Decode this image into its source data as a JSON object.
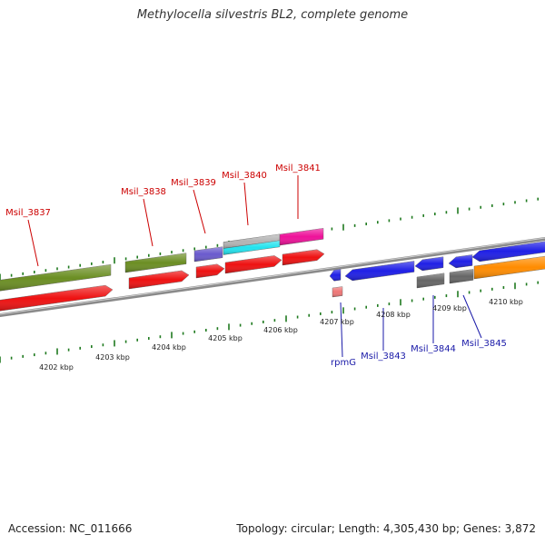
{
  "title": "Methylocella silvestris BL2, complete genome",
  "footer": {
    "accession": "Accession: NC_011666",
    "summary": "Topology: circular; Length: 4,305,430 bp; Genes: 3,872"
  },
  "colors": {
    "background": "#ffffff",
    "backbone": "#8a8a8a",
    "tick": "#1f7a1f",
    "label_forward": "#cc0000",
    "label_reverse": "#1a1aa8",
    "cds_red": "#ee1111",
    "green": "#6b8e23",
    "purple": "#6a5acd",
    "gray": "#b4b4b4",
    "cyan": "#22e3ee",
    "pink": "#ee1199",
    "blue": "#1f1fe6",
    "dark_gray": "#666666",
    "orange": "#ff8c00",
    "salmon": "#ee7777"
  },
  "kbp_labels": [
    "4202 kbp",
    "4203 kbp",
    "4204 kbp",
    "4205 kbp",
    "4206 kbp",
    "4207 kbp",
    "4208 kbp",
    "4209 kbp",
    "4210 kbp"
  ],
  "forward_labels": [
    "Msil_3837",
    "Msil_3838",
    "Msil_3839",
    "Msil_3840",
    "Msil_3841"
  ],
  "reverse_labels": [
    "rpmG",
    "Msil_3843",
    "Msil_3844",
    "Msil_3845"
  ]
}
